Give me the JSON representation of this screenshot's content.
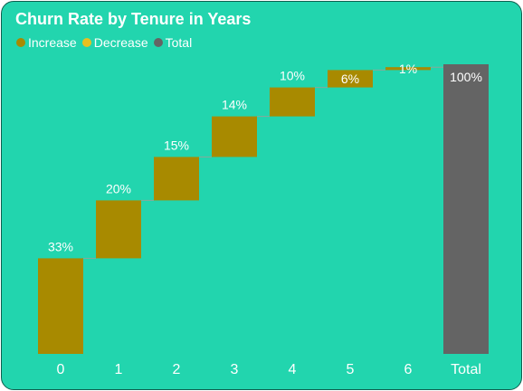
{
  "chart_data": {
    "type": "waterfall",
    "title": "Churn Rate by Tenure in Years",
    "legend": [
      {
        "label": "Increase",
        "color": "#a88a00"
      },
      {
        "label": "Decrease",
        "color": "#e8c020"
      },
      {
        "label": "Total",
        "color": "#646464"
      }
    ],
    "legend_position": "top-left",
    "categories": [
      "0",
      "1",
      "2",
      "3",
      "4",
      "5",
      "6",
      "Total"
    ],
    "values": [
      33,
      20,
      15,
      14,
      10,
      6,
      1,
      100
    ],
    "labels": [
      "33%",
      "20%",
      "15%",
      "14%",
      "10%",
      "6%",
      "1%",
      "100%"
    ],
    "kinds": [
      "increase",
      "increase",
      "increase",
      "increase",
      "increase",
      "increase",
      "increase",
      "total"
    ],
    "ylim": [
      0,
      100
    ],
    "grid": false,
    "colors": {
      "increase": "#a88a00",
      "decrease": "#e8c020",
      "total": "#646464",
      "connector": "#8aa89a",
      "text": "#ffffff",
      "background": "#22d5ae"
    }
  }
}
